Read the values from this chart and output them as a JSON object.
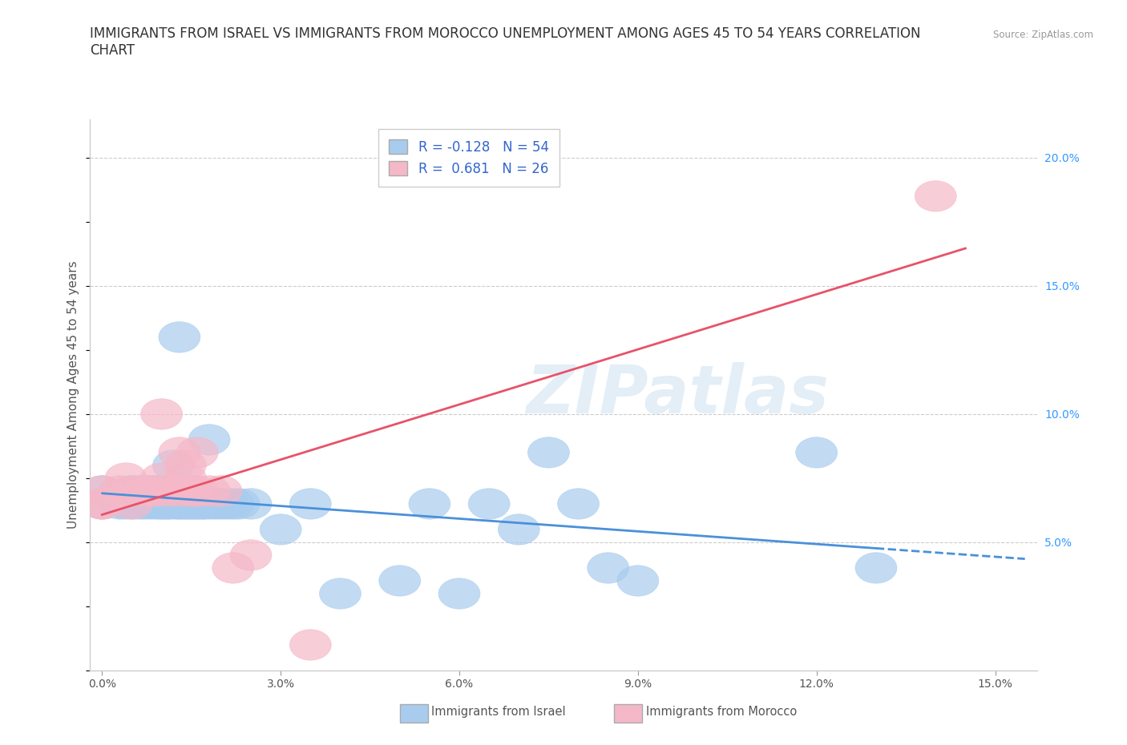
{
  "title_line1": "IMMIGRANTS FROM ISRAEL VS IMMIGRANTS FROM MOROCCO UNEMPLOYMENT AMONG AGES 45 TO 54 YEARS CORRELATION",
  "title_line2": "CHART",
  "source": "Source: ZipAtlas.com",
  "ylabel": "Unemployment Among Ages 45 to 54 years",
  "xlim": [
    -0.002,
    0.157
  ],
  "ylim": [
    0.0,
    0.215
  ],
  "xticks": [
    0.0,
    0.03,
    0.06,
    0.09,
    0.12,
    0.15
  ],
  "xticklabels": [
    "0.0%",
    "3.0%",
    "6.0%",
    "9.0%",
    "12.0%",
    "15.0%"
  ],
  "yticks_right": [
    0.05,
    0.1,
    0.15,
    0.2
  ],
  "ytick_right_labels": [
    "5.0%",
    "10.0%",
    "15.0%",
    "20.0%"
  ],
  "watermark": "ZIPatlas",
  "israel_color": "#a8ccee",
  "morocco_color": "#f5b8c8",
  "trend_israel_color": "#4a90d9",
  "trend_morocco_color": "#e8526a",
  "israel_R": -0.128,
  "israel_N": 54,
  "morocco_R": 0.681,
  "morocco_N": 26,
  "israel_points_x": [
    0.0,
    0.0,
    0.003,
    0.004,
    0.005,
    0.005,
    0.006,
    0.006,
    0.007,
    0.007,
    0.008,
    0.008,
    0.009,
    0.009,
    0.01,
    0.01,
    0.01,
    0.011,
    0.011,
    0.012,
    0.012,
    0.013,
    0.013,
    0.013,
    0.014,
    0.014,
    0.015,
    0.015,
    0.016,
    0.016,
    0.017,
    0.017,
    0.018,
    0.018,
    0.019,
    0.02,
    0.021,
    0.022,
    0.023,
    0.025,
    0.03,
    0.035,
    0.04,
    0.05,
    0.055,
    0.06,
    0.065,
    0.07,
    0.075,
    0.08,
    0.085,
    0.09,
    0.12,
    0.13
  ],
  "israel_points_y": [
    0.065,
    0.07,
    0.065,
    0.065,
    0.065,
    0.07,
    0.065,
    0.07,
    0.065,
    0.07,
    0.065,
    0.07,
    0.065,
    0.07,
    0.065,
    0.065,
    0.07,
    0.065,
    0.065,
    0.065,
    0.08,
    0.065,
    0.065,
    0.13,
    0.065,
    0.065,
    0.065,
    0.065,
    0.065,
    0.065,
    0.065,
    0.065,
    0.065,
    0.09,
    0.065,
    0.065,
    0.065,
    0.065,
    0.065,
    0.065,
    0.055,
    0.065,
    0.03,
    0.035,
    0.065,
    0.03,
    0.065,
    0.055,
    0.085,
    0.065,
    0.04,
    0.035,
    0.085,
    0.04
  ],
  "morocco_points_x": [
    0.0,
    0.0,
    0.0,
    0.003,
    0.004,
    0.005,
    0.005,
    0.007,
    0.008,
    0.009,
    0.01,
    0.01,
    0.011,
    0.013,
    0.013,
    0.014,
    0.014,
    0.015,
    0.016,
    0.016,
    0.018,
    0.02,
    0.022,
    0.025,
    0.035,
    0.14
  ],
  "morocco_points_y": [
    0.065,
    0.065,
    0.07,
    0.07,
    0.075,
    0.065,
    0.07,
    0.07,
    0.07,
    0.07,
    0.075,
    0.1,
    0.07,
    0.07,
    0.085,
    0.075,
    0.08,
    0.07,
    0.07,
    0.085,
    0.07,
    0.07,
    0.04,
    0.045,
    0.01,
    0.185
  ],
  "background_color": "#ffffff",
  "plot_bg_color": "#ffffff",
  "grid_color": "#cccccc",
  "title_fontsize": 12,
  "axis_label_fontsize": 11,
  "tick_fontsize": 10,
  "legend_fontsize": 12
}
